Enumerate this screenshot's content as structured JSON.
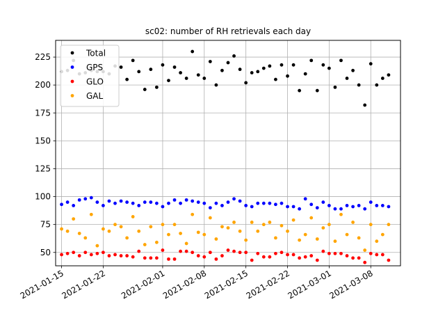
{
  "chart_data": {
    "type": "scatter",
    "title": "sc02: number of RH retrievals each day",
    "xlabel": "",
    "ylabel": "",
    "x_axis": "date",
    "xlim": [
      "2021-01-14",
      "2021-03-13"
    ],
    "ylim": [
      38,
      240
    ],
    "x_ticks": [
      "2021-01-15",
      "2021-01-22",
      "2021-02-01",
      "2021-02-08",
      "2021-02-15",
      "2021-02-22",
      "2021-03-01",
      "2021-03-08"
    ],
    "y_ticks": [
      50,
      75,
      100,
      125,
      150,
      175,
      200,
      225
    ],
    "grid": true,
    "legend_position": "top-left",
    "x": [
      "2021-01-15",
      "2021-01-16",
      "2021-01-17",
      "2021-01-18",
      "2021-01-19",
      "2021-01-20",
      "2021-01-21",
      "2021-01-22",
      "2021-01-23",
      "2021-01-24",
      "2021-01-25",
      "2021-01-26",
      "2021-01-27",
      "2021-01-28",
      "2021-01-29",
      "2021-01-30",
      "2021-01-31",
      "2021-02-01",
      "2021-02-02",
      "2021-02-03",
      "2021-02-04",
      "2021-02-05",
      "2021-02-06",
      "2021-02-07",
      "2021-02-08",
      "2021-02-09",
      "2021-02-10",
      "2021-02-11",
      "2021-02-12",
      "2021-02-13",
      "2021-02-14",
      "2021-02-15",
      "2021-02-16",
      "2021-02-17",
      "2021-02-18",
      "2021-02-19",
      "2021-02-20",
      "2021-02-21",
      "2021-02-22",
      "2021-02-23",
      "2021-02-24",
      "2021-02-25",
      "2021-02-26",
      "2021-02-27",
      "2021-02-28",
      "2021-03-01",
      "2021-03-02",
      "2021-03-03",
      "2021-03-04",
      "2021-03-05",
      "2021-03-06",
      "2021-03-07",
      "2021-03-08",
      "2021-03-09",
      "2021-03-10",
      "2021-03-11"
    ],
    "series": [
      {
        "name": "Total",
        "color": "#000000",
        "values": [
          212,
          213,
          222,
          210,
          211,
          213,
          212,
          212,
          210,
          217,
          216,
          205,
          222,
          212,
          196,
          214,
          198,
          218,
          204,
          216,
          211,
          206,
          230,
          209,
          206,
          221,
          200,
          213,
          220,
          226,
          214,
          202,
          211,
          212,
          215,
          217,
          205,
          218,
          208,
          218,
          195,
          210,
          222,
          195,
          218,
          215,
          198,
          222,
          206,
          213,
          200,
          182,
          219,
          200,
          206,
          209
        ]
      },
      {
        "name": "GPS",
        "color": "#0000ff",
        "values": [
          93,
          95,
          92,
          97,
          98,
          99,
          95,
          92,
          96,
          94,
          96,
          95,
          94,
          92,
          95,
          95,
          94,
          91,
          94,
          97,
          94,
          97,
          96,
          95,
          94,
          90,
          94,
          92,
          95,
          98,
          96,
          92,
          91,
          94,
          94,
          94,
          93,
          94,
          91,
          91,
          89,
          98,
          93,
          90,
          95,
          92,
          89,
          89,
          92,
          91,
          92,
          89,
          95,
          92,
          92,
          91
        ]
      },
      {
        "name": "GLO",
        "color": "#ff0000",
        "values": [
          48,
          49,
          50,
          47,
          50,
          48,
          49,
          50,
          47,
          48,
          47,
          47,
          46,
          51,
          45,
          45,
          45,
          52,
          44,
          44,
          51,
          51,
          50,
          47,
          46,
          50,
          44,
          47,
          52,
          51,
          50,
          50,
          43,
          49,
          46,
          46,
          49,
          50,
          48,
          48,
          45,
          46,
          47,
          43,
          51,
          49,
          49,
          49,
          47,
          45,
          45,
          41,
          49,
          48,
          48,
          43
        ]
      },
      {
        "name": "GAL",
        "color": "#ffa500",
        "values": [
          71,
          69,
          80,
          67,
          63,
          84,
          56,
          71,
          69,
          75,
          73,
          63,
          82,
          69,
          57,
          73,
          59,
          75,
          66,
          75,
          67,
          58,
          84,
          68,
          66,
          81,
          62,
          73,
          72,
          77,
          69,
          61,
          77,
          69,
          75,
          77,
          63,
          74,
          69,
          79,
          61,
          66,
          81,
          62,
          72,
          75,
          60,
          84,
          66,
          77,
          63,
          52,
          75,
          60,
          66,
          75
        ]
      }
    ]
  }
}
